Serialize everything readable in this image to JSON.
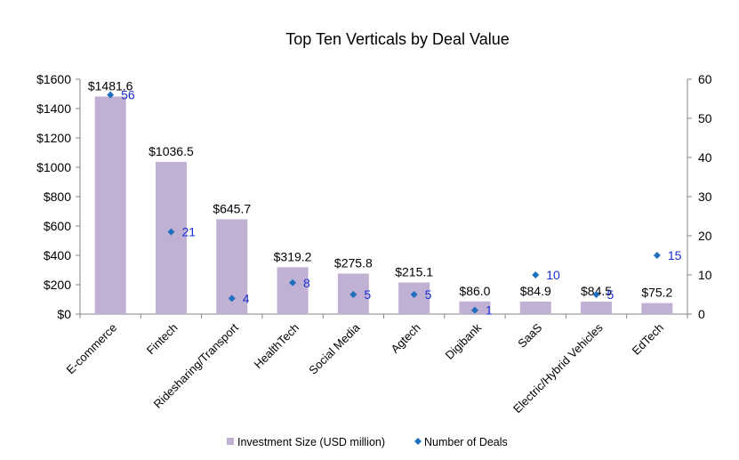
{
  "chart_data": {
    "type": "bar",
    "title": "Top Ten Verticals by Deal Value",
    "categories": [
      "E-commerce",
      "Fintech",
      "Ridesharing/Transport",
      "HealthTech",
      "Social Media",
      "Agtech",
      "Digibank",
      "SaaS",
      "Electric/Hybrid Vehicles",
      "EdTech"
    ],
    "series": [
      {
        "name": "Investment Size (USD million)",
        "type": "bar",
        "axis": "left",
        "color": "#c0b1d4",
        "values": [
          1481.6,
          1036.5,
          645.7,
          319.2,
          275.8,
          215.1,
          86.0,
          84.9,
          84.5,
          75.2
        ],
        "labels": [
          "$1481.6",
          "$1036.5",
          "$645.7",
          "$319.2",
          "$275.8",
          "$215.1",
          "$86.0",
          "$84.9",
          "$84.5",
          "$75.2"
        ]
      },
      {
        "name": "Number of Deals",
        "type": "scatter",
        "axis": "right",
        "color": "#1f6fbf",
        "label_color": "#1a2fd0",
        "values": [
          56,
          21,
          4,
          8,
          5,
          5,
          1,
          10,
          5,
          15
        ],
        "labels": [
          "56",
          "21",
          "4",
          "8",
          "5",
          "5",
          "1",
          "10",
          "5",
          "15"
        ]
      }
    ],
    "y_left": {
      "ylim": [
        0,
        1600
      ],
      "ticks": [
        0,
        200,
        400,
        600,
        800,
        1000,
        1200,
        1400,
        1600
      ],
      "tick_labels": [
        "$0",
        "$200",
        "$400",
        "$600",
        "$800",
        "$1000",
        "$1200",
        "$1400",
        "$1600"
      ]
    },
    "y_right": {
      "ylim": [
        0,
        60
      ],
      "ticks": [
        0,
        10,
        20,
        30,
        40,
        50,
        60
      ],
      "tick_labels": [
        "0",
        "10",
        "20",
        "30",
        "40",
        "50",
        "60"
      ]
    },
    "xlabel": "",
    "ylabel": "",
    "grid": false,
    "legend_position": "bottom",
    "legend": [
      "Investment Size (USD million)",
      "Number of Deals"
    ]
  }
}
